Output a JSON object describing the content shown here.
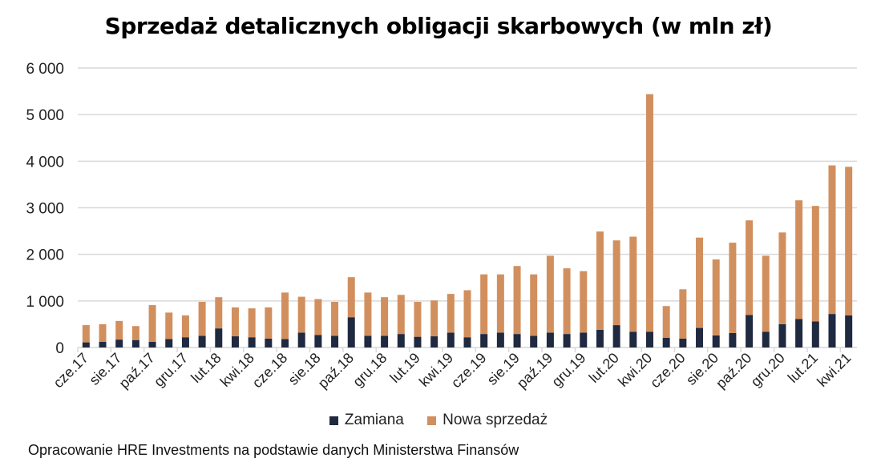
{
  "chart_data": {
    "type": "bar",
    "stacked": true,
    "title": "Sprzedaż detalicznych obligacji skarbowych (w mln zł)",
    "categories": [
      "cze.17",
      "lip.17",
      "sie.17",
      "wrz.17",
      "paź.17",
      "lis.17",
      "gru.17",
      "sty.18",
      "lut.18",
      "mar.18",
      "kwi.18",
      "maj.18",
      "cze.18",
      "lip.18",
      "sie.18",
      "wrz.18",
      "paź.18",
      "lis.18",
      "gru.18",
      "sty.19",
      "lut.19",
      "mar.19",
      "kwi.19",
      "maj.19",
      "cze.19",
      "lip.19",
      "sie.19",
      "wrz.19",
      "paź.19",
      "lis.19",
      "gru.19",
      "sty.20",
      "lut.20",
      "mar.20",
      "kwi.20",
      "maj.20",
      "cze.20",
      "lip.20",
      "sie.20",
      "wrz.20",
      "paź.20",
      "lis.20",
      "gru.20",
      "sty.21",
      "lut.21",
      "mar.21",
      "kwi.21"
    ],
    "tick_labels": [
      "cze.17",
      "sie.17",
      "paź.17",
      "gru.17",
      "lut.18",
      "kwi.18",
      "cze.18",
      "sie.18",
      "paź.18",
      "gru.18",
      "lut.19",
      "kwi.19",
      "cze.19",
      "sie.19",
      "paź.19",
      "gru.19",
      "lut.20",
      "kwi.20",
      "cze.20",
      "sie.20",
      "paź.20",
      "gru.20",
      "lut.21",
      "kwi.21"
    ],
    "series": [
      {
        "name": "Zamiana",
        "color": "#1f2940",
        "values": [
          110,
          120,
          170,
          160,
          120,
          180,
          220,
          250,
          410,
          240,
          220,
          190,
          180,
          320,
          270,
          250,
          650,
          250,
          250,
          290,
          230,
          240,
          320,
          220,
          290,
          320,
          290,
          250,
          320,
          290,
          320,
          380,
          480,
          340,
          340,
          210,
          190,
          420,
          260,
          310,
          700,
          340,
          500,
          610,
          560,
          720,
          690
        ]
      },
      {
        "name": "Nowa sprzedaż",
        "color": "#d28f5e",
        "values": [
          370,
          380,
          400,
          300,
          790,
          570,
          470,
          730,
          670,
          620,
          620,
          670,
          1000,
          770,
          770,
          730,
          860,
          930,
          830,
          840,
          750,
          770,
          830,
          1010,
          1280,
          1250,
          1460,
          1320,
          1650,
          1410,
          1320,
          2110,
          1820,
          2040,
          5100,
          680,
          1060,
          1940,
          1630,
          1940,
          2030,
          1630,
          1970,
          2550,
          2480,
          3190,
          3190
        ]
      }
    ],
    "ylim": [
      0,
      6000
    ],
    "yticks": [
      0,
      1000,
      2000,
      3000,
      4000,
      5000,
      6000
    ],
    "ytick_labels": [
      "0",
      "1 000",
      "2 000",
      "3 000",
      "4 000",
      "5 000",
      "6 000"
    ],
    "grid": true,
    "legend_placement": "bottom"
  },
  "source": "Opracowanie HRE Investments na podstawie danych Ministerstwa Finansów"
}
